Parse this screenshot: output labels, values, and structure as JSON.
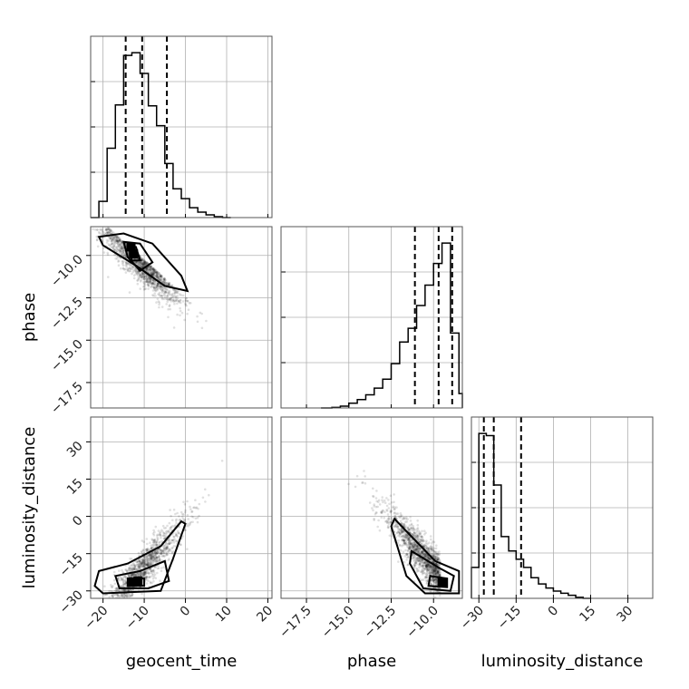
{
  "chart_data": {
    "type": "corner",
    "parameters": [
      "geocent_time",
      "phase",
      "luminosity_distance"
    ],
    "xlabels": {
      "geocent_time": "geocent_time",
      "phase": "phase",
      "luminosity_distance": "luminosity_distance"
    },
    "ylabels": {
      "phase": "phase",
      "luminosity_distance": "luminosity_distance"
    },
    "ranges": {
      "geocent_time": [
        -23,
        21
      ],
      "phase": [
        -19,
        -8.3
      ],
      "luminosity_distance": [
        -33,
        40
      ]
    },
    "ticks": {
      "geocent_time": [
        -20,
        -10,
        0,
        10,
        20
      ],
      "phase": [
        -17.5,
        -15.0,
        -12.5,
        -10.0
      ],
      "luminosity_distance": [
        -30,
        -15,
        0,
        15,
        30
      ]
    },
    "tick_labels": {
      "geocent_time": [
        "−20",
        "−10",
        "0",
        "10",
        "20"
      ],
      "phase": [
        "−17.5",
        "−15.0",
        "−12.5",
        "−10.0"
      ],
      "luminosity_distance": [
        "−30",
        "−15",
        "0",
        "15",
        "30"
      ]
    },
    "quantiles": {
      "geocent_time": [
        -14.5,
        -10.5,
        -4.5
      ],
      "phase": [
        -11.1,
        -9.7,
        -8.9
      ],
      "luminosity_distance": [
        -28,
        -24,
        -13
      ]
    },
    "histograms": {
      "geocent_time": {
        "edges": [
          -21,
          -19,
          -17,
          -15,
          -13,
          -11,
          -9,
          -7,
          -5,
          -3,
          -1,
          1,
          3,
          5,
          7,
          9,
          11
        ],
        "counts": [
          18,
          77,
          125,
          180,
          183,
          160,
          124,
          102,
          60,
          32,
          21,
          11,
          6,
          3,
          1,
          0
        ]
      },
      "phase": {
        "edges": [
          -16,
          -15.5,
          -15,
          -14.5,
          -14,
          -13.5,
          -13,
          -12.5,
          -12,
          -11.5,
          -11,
          -10.5,
          -10,
          -9.5,
          -9,
          -8.5,
          -8.3
        ],
        "counts": [
          1,
          3,
          8,
          14,
          22,
          33,
          48,
          74,
          110,
          133,
          171,
          205,
          241,
          275,
          125,
          24
        ]
      },
      "luminosity_distance": {
        "edges": [
          -33,
          -30,
          -27,
          -24,
          -21,
          -18,
          -15,
          -12,
          -9,
          -6,
          -3,
          0,
          3,
          6,
          9,
          12,
          15
        ],
        "counts": [
          30,
          160,
          158,
          110,
          60,
          46,
          38,
          30,
          20,
          14,
          10,
          7,
          5,
          3,
          1,
          0
        ]
      }
    },
    "scatter_peaks": [
      {
        "x": "geocent_time",
        "y": "phase",
        "peak": [
          -13,
          -9.5
        ]
      },
      {
        "x": "geocent_time",
        "y": "luminosity_distance",
        "peak": [
          -13,
          -26
        ]
      },
      {
        "x": "phase",
        "y": "luminosity_distance",
        "peak": [
          -9.5,
          -26
        ]
      }
    ],
    "contour_levels": [
      "inner",
      "middle",
      "outer"
    ]
  }
}
